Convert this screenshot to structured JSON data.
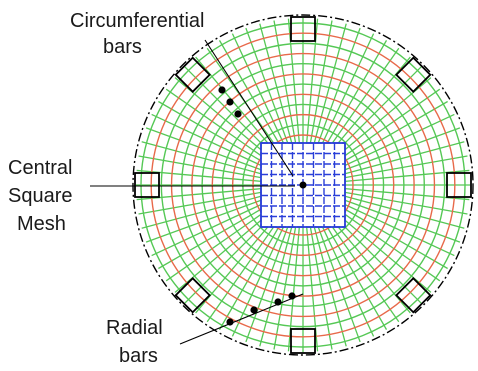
{
  "labels": {
    "circumferential_line1": "Circumferential",
    "circumferential_line2": "bars",
    "central_line1": "Central",
    "central_line2": "Square",
    "central_line3": "Mesh",
    "radial_line1": "Radial",
    "radial_line2": "bars"
  },
  "colors": {
    "radial_bar": "#55c855",
    "circumferential_bar": "#e8694a",
    "central_mesh": "#2a3fd8",
    "outline": "#000000",
    "leader": "#000000"
  },
  "structure": {
    "circumferential_ring_count": 12,
    "radial_bar_count": 72,
    "mesh_divisions": 8,
    "column_box_count": 8
  }
}
